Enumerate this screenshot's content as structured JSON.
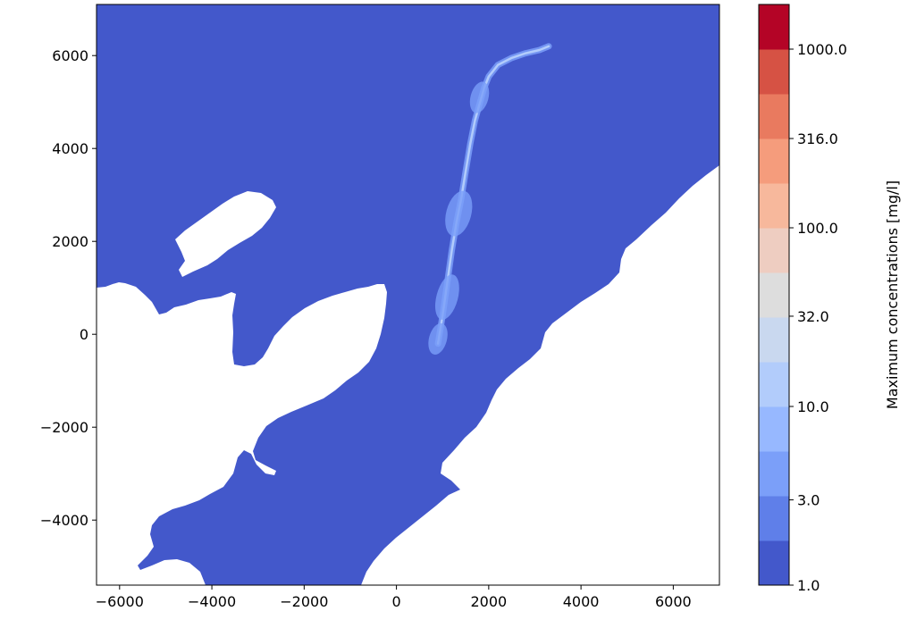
{
  "chart_data": {
    "type": "heatmap",
    "title": "",
    "xlabel": "",
    "ylabel": "",
    "xlim": [
      -6500,
      7000
    ],
    "ylim": [
      -5400,
      7100
    ],
    "grid": false,
    "x_ticks": [
      -6000,
      -4000,
      -2000,
      0,
      2000,
      4000,
      6000
    ],
    "x_tick_labels": [
      "−6000",
      "−4000",
      "−2000",
      "0",
      "2000",
      "4000",
      "6000"
    ],
    "y_ticks": [
      -4000,
      -2000,
      0,
      2000,
      4000,
      6000
    ],
    "y_tick_labels": [
      "−4000",
      "−2000",
      "0",
      "2000",
      "4000",
      "6000"
    ],
    "water_color": "#4358cb",
    "land_color": "#ffffff",
    "colorbar": {
      "label": "Maximum concentrations [mg/l]",
      "scale": "log",
      "range": [
        1.0,
        1778.0
      ],
      "ticks": [
        1.0,
        3.0,
        10.0,
        32.0,
        100.0,
        316.0,
        1000.0
      ],
      "tick_labels": [
        "1.0",
        "3.0",
        "10.0",
        "32.0",
        "100.0",
        "316.0",
        "1000.0"
      ],
      "levels": 13,
      "colors": [
        "#4358cb",
        "#5f7fe9",
        "#7b9ff9",
        "#97b8ff",
        "#b2ccfb",
        "#c9d8ef",
        "#dddddd",
        "#eecdc1",
        "#f7b89c",
        "#f59c7c",
        "#e97a5f",
        "#d65244",
        "#b40426"
      ]
    },
    "plume": {
      "description_color": "#7b9ff9",
      "core_color": "#b2ccfb",
      "path_x": [
        900,
        1000,
        1100,
        1200,
        1300,
        1400,
        1500,
        1600,
        1700,
        1800,
        1900,
        2000,
        2200,
        2500,
        2800,
        3100,
        3300
      ],
      "path_y": [
        -200,
        400,
        1100,
        1800,
        2400,
        2900,
        3500,
        4100,
        4600,
        4950,
        5300,
        5550,
        5800,
        5950,
        6050,
        6120,
        6200
      ],
      "max_concentration": 3.0
    }
  }
}
